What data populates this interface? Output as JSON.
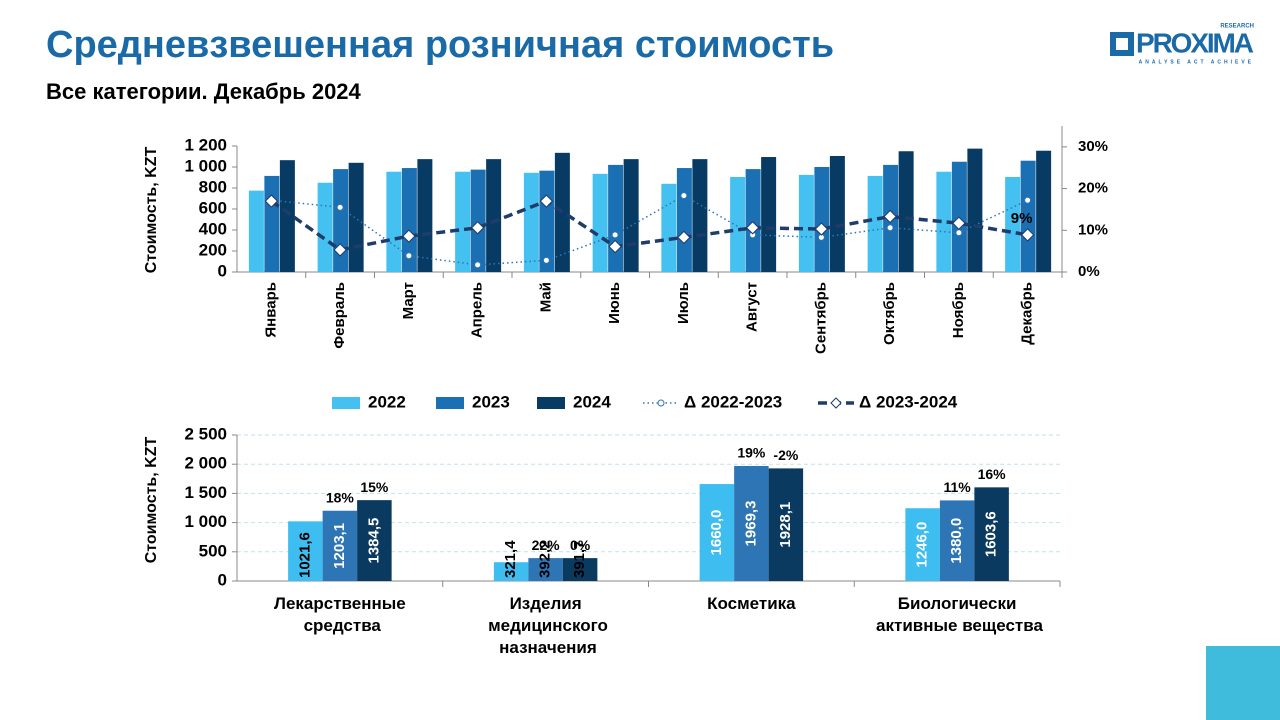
{
  "header": {
    "title": "Средневзвешенная розничная стоимость",
    "subtitle": "Все категории. Декабрь 2024",
    "logo": "PROXIMA",
    "logo_top": "RESEARCH",
    "logo_tagline": "ANALYSE ACT ACHIEVE"
  },
  "chart_data": [
    {
      "type": "bar_line",
      "ylabel": "Стоимость, KZT",
      "categories": [
        "Январь",
        "Февраль",
        "Март",
        "Апрель",
        "Май",
        "Июнь",
        "Июль",
        "Август",
        "Сентябрь",
        "Октябрь",
        "Ноябрь",
        "Декабрь"
      ],
      "ylim": [
        0,
        1200
      ],
      "yticks": [
        0,
        200,
        400,
        600,
        800,
        {
          "value": 1000,
          "label": "1 000"
        },
        {
          "value": 1200,
          "label": "1 200"
        }
      ],
      "y2lim": [
        0,
        35
      ],
      "y2ticks": [
        {
          "value": 0,
          "label": "0%"
        },
        {
          "value": 10,
          "label": "10%"
        },
        {
          "value": 20,
          "label": "20%"
        },
        {
          "value": 30,
          "label": "30%"
        }
      ],
      "grid": false,
      "series": [
        {
          "name": "2022",
          "color": "#45c1f1",
          "values": [
            775,
            850,
            955,
            955,
            945,
            935,
            840,
            905,
            925,
            915,
            955,
            905
          ]
        },
        {
          "name": "2023",
          "color": "#1b6fb3",
          "values": [
            915,
            980,
            990,
            975,
            965,
            1020,
            990,
            980,
            1000,
            1020,
            1050,
            1060
          ]
        },
        {
          "name": "2024",
          "color": "#073b63",
          "values": [
            1065,
            1040,
            1075,
            1075,
            1135,
            1075,
            1075,
            1095,
            1105,
            1150,
            1175,
            1155
          ]
        },
        {
          "name": "Δ 2022-2023",
          "color": "#2e75b6",
          "axis": "y2",
          "style": "dotted",
          "values": [
            17.2,
            15.5,
            3.9,
            1.7,
            2.8,
            8.9,
            18.3,
            8.9,
            8.3,
            10.6,
            9.4,
            17.2
          ]
        },
        {
          "name": "Δ 2023-2024",
          "color": "#1f3c6b",
          "axis": "y2",
          "style": "dashed",
          "values": [
            17,
            5.3,
            8.6,
            10.6,
            17,
            6.1,
            8.3,
            10.6,
            10.3,
            13.3,
            11.7,
            8.9
          ],
          "value_labels": [
            null,
            null,
            null,
            null,
            null,
            null,
            null,
            null,
            null,
            null,
            null,
            "9%"
          ]
        }
      ]
    },
    {
      "type": "bar",
      "ylabel": "Стоимость, KZT",
      "categories": [
        "Лекарственные средства",
        "Изделия медицинского назначения",
        "Косметика",
        "Биологически активные вещества"
      ],
      "ylim": [
        0,
        2500
      ],
      "yticks": [
        0,
        500,
        {
          "value": 1000,
          "label": "1 000"
        },
        {
          "value": 1500,
          "label": "1 500"
        },
        {
          "value": 2000,
          "label": "2 000"
        },
        {
          "value": 2500,
          "label": "2 500"
        }
      ],
      "grid": true,
      "series": [
        {
          "color": "#3dbdf0",
          "values": [
            1021.6,
            321.4,
            1660.0,
            1246.0
          ],
          "value_labels": [
            "1021,6",
            "321,4",
            "1660,0",
            "1246,0"
          ]
        },
        {
          "color": "#2e75b6",
          "values": [
            1203.1,
            392.2,
            1969.3,
            1380.0
          ],
          "value_labels": [
            "1203,1",
            "392,2",
            "1969,3",
            "1380,0"
          ],
          "change_labels": [
            "18%",
            "22%",
            "19%",
            "11%"
          ]
        },
        {
          "color": "#0b3a60",
          "values": [
            1384.5,
            391.7,
            1928.1,
            1603.6
          ],
          "value_labels": [
            "1384,5",
            "391,7",
            "1928,1",
            "1603,6"
          ],
          "change_labels": [
            "15%",
            "0%",
            "-2%",
            "16%"
          ]
        }
      ]
    }
  ]
}
